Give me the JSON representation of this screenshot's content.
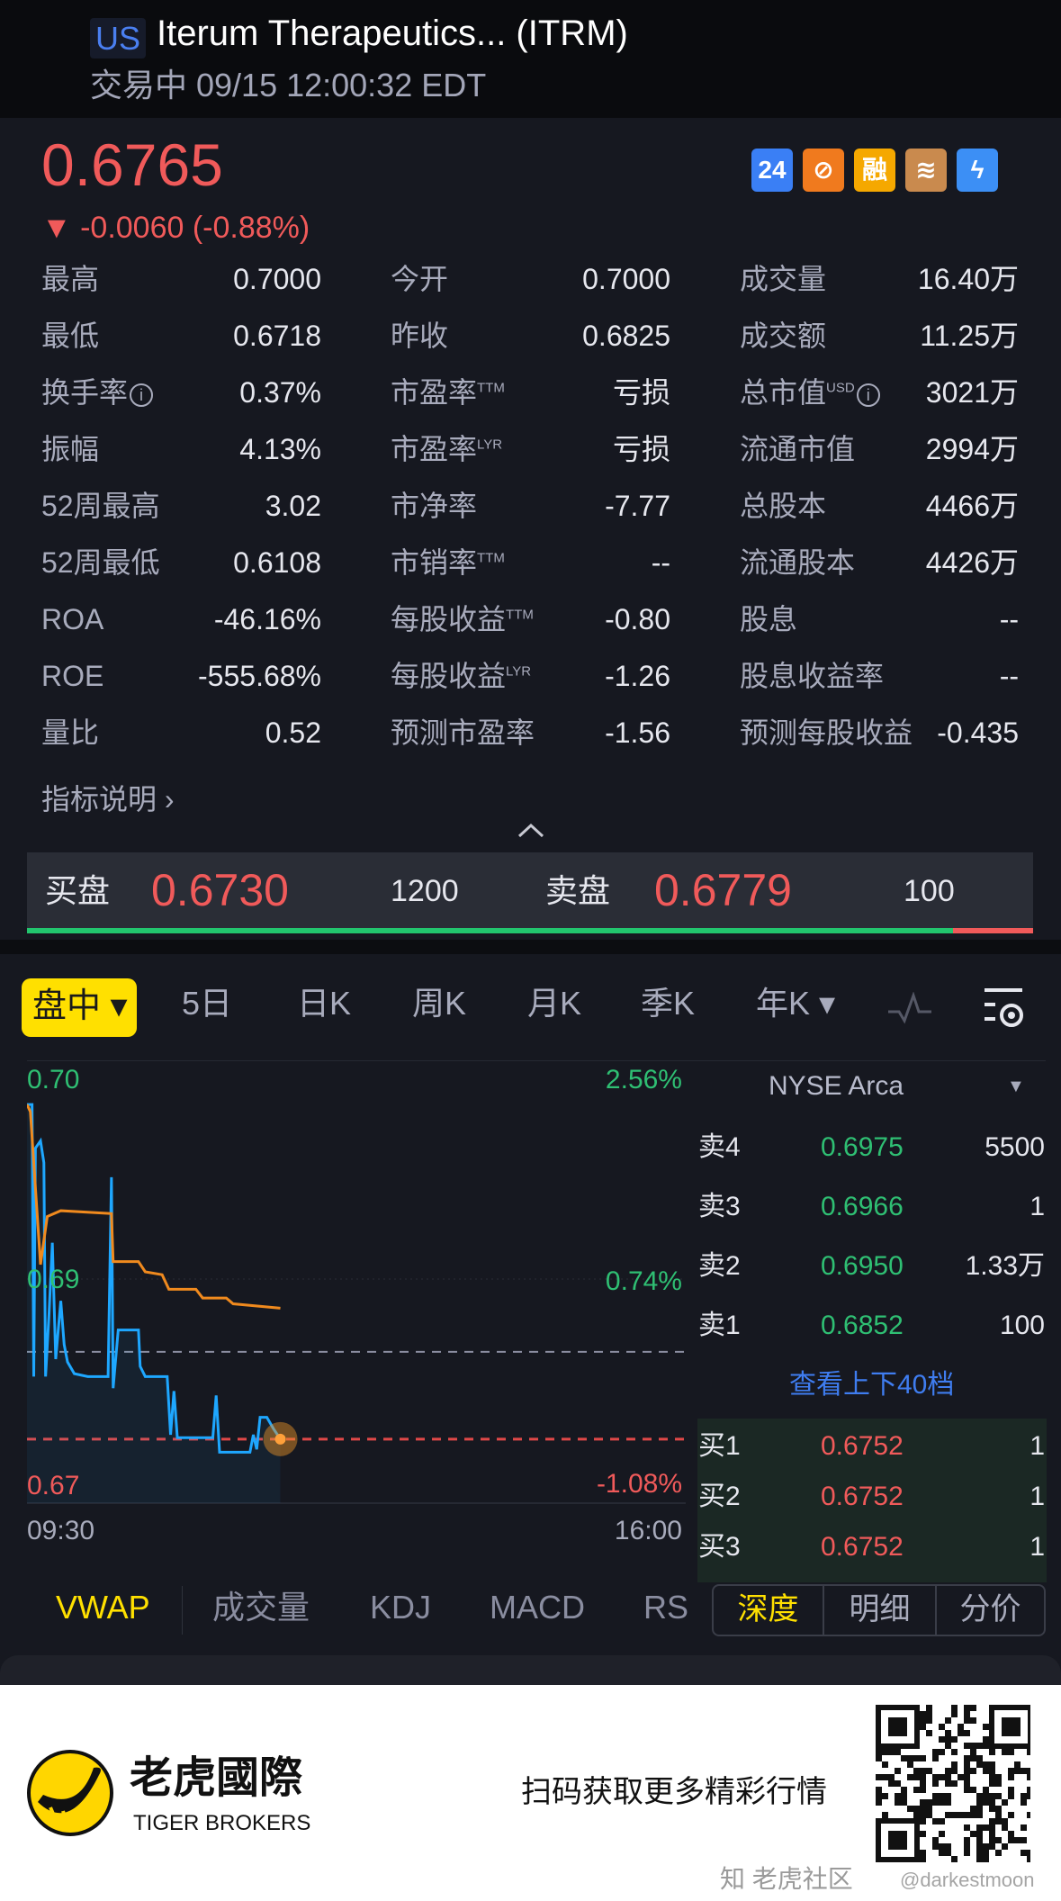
{
  "header": {
    "market": "US",
    "title": "Iterum Therapeutics... (ITRM)",
    "status": "交易中 09/15 12:00:32 EDT"
  },
  "quote": {
    "price": "0.6765",
    "change": "▼ -0.0060 (-0.88%)",
    "badges": [
      {
        "icon": "24h-trading-icon",
        "text": "24",
        "color": "#3a7ff5"
      },
      {
        "icon": "no-short-icon",
        "text": "⊘",
        "color": "#f07a1e"
      },
      {
        "icon": "margin-icon",
        "text": "融",
        "color": "#f5a800"
      },
      {
        "icon": "layers-a-icon",
        "text": "≋",
        "color": "#c98a4e"
      },
      {
        "icon": "lightning-icon",
        "text": "ϟ",
        "color": "#3c8ff5"
      }
    ]
  },
  "stats": [
    [
      {
        "l": "最高",
        "v": "0.7000"
      },
      {
        "l": "今开",
        "v": "0.7000"
      },
      {
        "l": "成交量",
        "v": "16.40万"
      }
    ],
    [
      {
        "l": "最低",
        "v": "0.6718"
      },
      {
        "l": "昨收",
        "v": "0.6825"
      },
      {
        "l": "成交额",
        "v": "11.25万"
      }
    ],
    [
      {
        "l": "换手率",
        "info": true,
        "v": "0.37%"
      },
      {
        "l": "市盈率",
        "sup": "TTM",
        "v": "亏损"
      },
      {
        "l": "总市值",
        "sup": "USD",
        "info": true,
        "v": "3021万"
      }
    ],
    [
      {
        "l": "振幅",
        "v": "4.13%"
      },
      {
        "l": "市盈率",
        "sup": "LYR",
        "v": "亏损"
      },
      {
        "l": "流通市值",
        "v": "2994万"
      }
    ],
    [
      {
        "l": "52周最高",
        "v": "3.02"
      },
      {
        "l": "市净率",
        "v": "-7.77"
      },
      {
        "l": "总股本",
        "v": "4466万"
      }
    ],
    [
      {
        "l": "52周最低",
        "v": "0.6108"
      },
      {
        "l": "市销率",
        "sup": "TTM",
        "v": "--"
      },
      {
        "l": "流通股本",
        "v": "4426万"
      }
    ],
    [
      {
        "l": "ROA",
        "v": "-46.16%"
      },
      {
        "l": "每股收益",
        "sup": "TTM",
        "v": "-0.80"
      },
      {
        "l": "股息",
        "v": "--"
      }
    ],
    [
      {
        "l": "ROE",
        "v": "-555.68%"
      },
      {
        "l": "每股收益",
        "sup": "LYR",
        "v": "-1.26"
      },
      {
        "l": "股息收益率",
        "v": "--"
      }
    ],
    [
      {
        "l": "量比",
        "v": "0.52"
      },
      {
        "l": "预测市盈率",
        "v": "-1.56"
      },
      {
        "l": "预测每股收益",
        "v": "-0.435"
      }
    ]
  ],
  "indicator_link": "指标说明 ›",
  "bidask": {
    "bid_label": "买盘",
    "bid": "0.6730",
    "bid_size": "1200",
    "ask_label": "卖盘",
    "ask": "0.6779",
    "ask_size": "100",
    "bid_ratio": 0.92
  },
  "periods": {
    "active": "盘中 ▾",
    "items": [
      "5日",
      "日K",
      "周K",
      "月K",
      "季K",
      "年K ▾"
    ]
  },
  "chart_data": {
    "type": "line",
    "y_labels": {
      "top": "0.70",
      "mid": "0.69",
      "bottom": "0.67"
    },
    "pct_labels": {
      "top": "2.56%",
      "mid": "0.74%",
      "bottom": "-1.08%"
    },
    "x_labels": [
      "09:30",
      "16:00"
    ],
    "prev_close": 0.6825,
    "current": 0.6765,
    "ylim": [
      0.6722,
      0.7025
    ],
    "series": [
      {
        "color": "#1ea7ff",
        "points": [
          [
            0,
            0.6995
          ],
          [
            3,
            0.6995
          ],
          [
            4,
            0.6808
          ],
          [
            5,
            0.6965
          ],
          [
            8,
            0.697
          ],
          [
            10,
            0.6955
          ],
          [
            11,
            0.6808
          ],
          [
            13,
            0.685
          ],
          [
            15,
            0.69
          ],
          [
            17,
            0.682
          ],
          [
            20,
            0.686
          ],
          [
            22,
            0.683
          ],
          [
            24,
            0.6818
          ],
          [
            28,
            0.681
          ],
          [
            36,
            0.6808
          ],
          [
            48,
            0.6808
          ],
          [
            50,
            0.6945
          ],
          [
            51,
            0.68
          ],
          [
            54,
            0.684
          ],
          [
            66,
            0.684
          ],
          [
            67,
            0.6815
          ],
          [
            70,
            0.6808
          ],
          [
            83,
            0.6808
          ],
          [
            85,
            0.6768
          ],
          [
            87,
            0.6798
          ],
          [
            89,
            0.6766
          ],
          [
            100,
            0.6766
          ],
          [
            110,
            0.6766
          ],
          [
            112,
            0.6795
          ],
          [
            114,
            0.6756
          ],
          [
            132,
            0.6756
          ],
          [
            134,
            0.6768
          ],
          [
            136,
            0.6758
          ],
          [
            138,
            0.678
          ],
          [
            142,
            0.678
          ],
          [
            146,
            0.6772
          ],
          [
            150,
            0.6765
          ]
        ]
      },
      {
        "color": "#f08a1e",
        "points": [
          [
            0,
            0.6995
          ],
          [
            2,
            0.699
          ],
          [
            8,
            0.6885
          ],
          [
            12,
            0.6918
          ],
          [
            20,
            0.6922
          ],
          [
            50,
            0.692
          ],
          [
            51,
            0.6887
          ],
          [
            66,
            0.6887
          ],
          [
            70,
            0.688
          ],
          [
            80,
            0.6878
          ],
          [
            84,
            0.6868
          ],
          [
            100,
            0.6868
          ],
          [
            104,
            0.6862
          ],
          [
            118,
            0.6862
          ],
          [
            122,
            0.6858
          ],
          [
            150,
            0.6855
          ]
        ]
      }
    ]
  },
  "orderbook": {
    "exchange": "NYSE Arca",
    "asks": [
      {
        "l": "卖4",
        "p": "0.6975",
        "q": "5500"
      },
      {
        "l": "卖3",
        "p": "0.6966",
        "q": "1"
      },
      {
        "l": "卖2",
        "p": "0.6950",
        "q": "1.33万"
      },
      {
        "l": "卖1",
        "p": "0.6852",
        "q": "100"
      }
    ],
    "more": "查看上下40档",
    "bids": [
      {
        "l": "买1",
        "p": "0.6752",
        "q": "1"
      },
      {
        "l": "买2",
        "p": "0.6752",
        "q": "1"
      },
      {
        "l": "买3",
        "p": "0.6752",
        "q": "1"
      }
    ]
  },
  "indicators": [
    "VWAP",
    "成交量",
    "KDJ",
    "MACD",
    "RS"
  ],
  "detail_tabs": [
    "深度",
    "明细",
    "分价"
  ],
  "footer": {
    "brand_cn": "老虎國際",
    "brand_en": "TIGER BROKERS",
    "slogan": "扫码获取更多精彩行情",
    "watermark": "知 老虎社区",
    "handle": "@darkestmoon"
  }
}
